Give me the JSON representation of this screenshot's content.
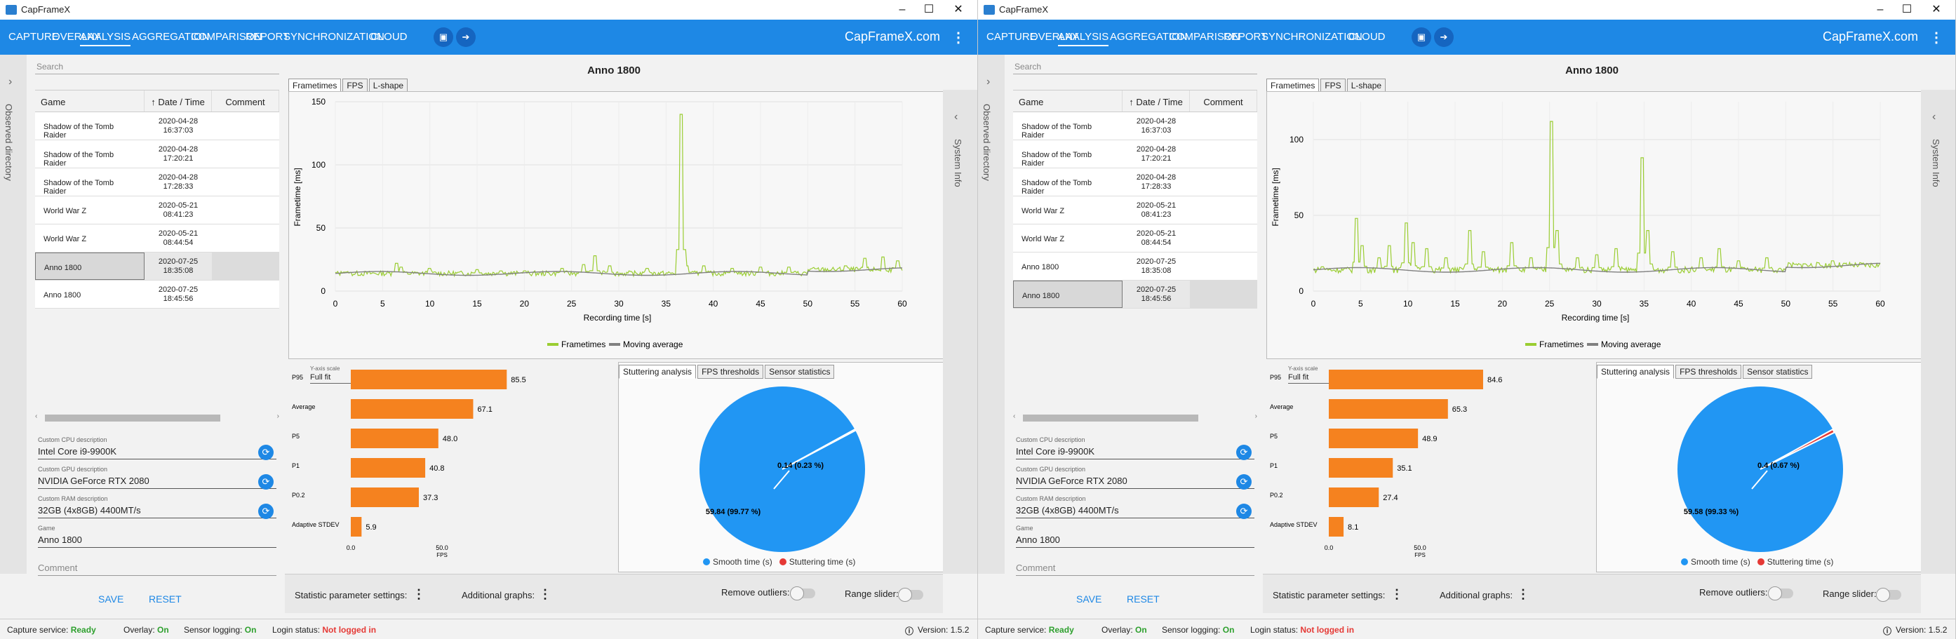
{
  "app": {
    "title": "CapFrameX"
  },
  "nav": {
    "items": [
      "CAPTURE",
      "OVERLAY",
      "ANALYSIS",
      "AGGREGATION",
      "COMPARISON",
      "REPORT",
      "SYNCHRONIZATION",
      "CLOUD"
    ],
    "active": "ANALYSIS",
    "brand": "CapFrameX.com"
  },
  "sidebar": {
    "observed_label": "Observed directory",
    "system_info_label": "System Info"
  },
  "search": {
    "placeholder": "Search"
  },
  "table": {
    "headers": [
      "Game",
      "Date / Time",
      "Comment"
    ]
  },
  "fields": {
    "cpu_label": "Custom CPU description",
    "gpu_label": "Custom GPU description",
    "ram_label": "Custom RAM description",
    "game_label": "Game",
    "comment_label": "Comment"
  },
  "buttons": {
    "save": "SAVE",
    "reset": "RESET"
  },
  "tabs": {
    "chart": [
      "Frametimes",
      "FPS",
      "L-shape"
    ],
    "analysis": [
      "Stuttering analysis",
      "FPS thresholds",
      "Sensor statistics"
    ]
  },
  "chart_labels": {
    "y_axis": "Frametime [ms]",
    "x_axis": "Recording time [s]",
    "yscale_label": "Y-axis scale",
    "yscale_value": "Full fit",
    "legend_frametimes": "Frametimes",
    "legend_moving": "Moving average",
    "fps_axis": "FPS",
    "smooth_legend": "Smooth time (s)",
    "stutter_legend": "Stuttering time (s)"
  },
  "settings": {
    "stat_params": "Statistic parameter settings:",
    "additional_graphs": "Additional graphs:",
    "remove_outliers": "Remove outliers:",
    "range_slider": "Range slider:"
  },
  "status": {
    "capture_label": "Capture service:",
    "capture_value": "Ready",
    "overlay_label": "Overlay:",
    "overlay_value": "On",
    "sensor_label": "Sensor logging:",
    "sensor_value": "On",
    "login_label": "Login status:",
    "login_value": "Not logged in",
    "version": "Version: 1.5.2"
  },
  "colors": {
    "accent": "#1e88e5",
    "frametimes": "#9acd32",
    "moving": "#808080",
    "bar": "#f5821f",
    "smooth": "#2196f3",
    "stutter": "#e53935"
  },
  "windows": [
    {
      "records": [
        {
          "game": "Shadow of the Tomb Raider",
          "date": "2020-04-28",
          "time": "16:37:03"
        },
        {
          "game": "Shadow of the Tomb Raider",
          "date": "2020-04-28",
          "time": "17:20:21"
        },
        {
          "game": "Shadow of the Tomb Raider",
          "date": "2020-04-28",
          "time": "17:28:33"
        },
        {
          "game": "World War Z",
          "date": "2020-05-21",
          "time": "08:41:23"
        },
        {
          "game": "World War Z",
          "date": "2020-05-21",
          "time": "08:44:54"
        },
        {
          "game": "Anno 1800",
          "date": "2020-07-25",
          "time": "18:35:08"
        },
        {
          "game": "Anno 1800",
          "date": "2020-07-25",
          "time": "18:45:56"
        }
      ],
      "selected": 5,
      "cpu": "Intel Core i9-9900K",
      "gpu": "NVIDIA GeForce RTX 2080",
      "ram": "32GB (4x8GB) 4400MT/s",
      "game": "Anno 1800",
      "comment": "",
      "chart_title": "Anno 1800",
      "frametime_chart": {
        "type": "line",
        "xlim": [
          0,
          60
        ],
        "ylim": [
          0,
          150
        ],
        "yticks": [
          0,
          50,
          100,
          150
        ],
        "xticks": [
          0,
          5,
          10,
          15,
          20,
          25,
          30,
          35,
          40,
          45,
          50,
          55,
          60
        ],
        "baseline": 14,
        "spikes": [
          [
            1,
            15
          ],
          [
            6.5,
            22
          ],
          [
            7,
            19
          ],
          [
            10,
            18
          ],
          [
            15,
            17
          ],
          [
            17.5,
            16
          ],
          [
            20,
            16
          ],
          [
            24,
            18
          ],
          [
            26.3,
            21
          ],
          [
            27.5,
            28
          ],
          [
            29,
            20
          ],
          [
            33,
            18
          ],
          [
            36.6,
            140
          ],
          [
            37.2,
            20
          ],
          [
            39,
            20
          ],
          [
            42,
            18
          ],
          [
            45,
            19
          ],
          [
            48,
            19
          ],
          [
            54,
            20
          ],
          [
            56,
            26
          ],
          [
            58,
            27
          ],
          [
            59.5,
            24
          ]
        ]
      },
      "bar_chart": {
        "type": "bar",
        "categories": [
          "P95",
          "Average",
          "P5",
          "P1",
          "P0.2",
          "Adaptive STDEV"
        ],
        "values": [
          85.5,
          67.1,
          48.0,
          40.8,
          37.3,
          5.9
        ],
        "ticks": [
          "0.0",
          "50.0"
        ],
        "xmax_ref": 50
      },
      "pie_chart": {
        "type": "pie",
        "slices": [
          {
            "label": "Smooth time (s)",
            "value": 59.84,
            "text": "59.84 (99.77 %)"
          },
          {
            "label": "Stuttering time (s)",
            "value": 0.14,
            "text": "0.14 (0.23 %)"
          }
        ]
      }
    },
    {
      "records": [
        {
          "game": "Shadow of the Tomb Raider",
          "date": "2020-04-28",
          "time": "16:37:03"
        },
        {
          "game": "Shadow of the Tomb Raider",
          "date": "2020-04-28",
          "time": "17:20:21"
        },
        {
          "game": "Shadow of the Tomb Raider",
          "date": "2020-04-28",
          "time": "17:28:33"
        },
        {
          "game": "World War Z",
          "date": "2020-05-21",
          "time": "08:41:23"
        },
        {
          "game": "World War Z",
          "date": "2020-05-21",
          "time": "08:44:54"
        },
        {
          "game": "Anno 1800",
          "date": "2020-07-25",
          "time": "18:35:08"
        },
        {
          "game": "Anno 1800",
          "date": "2020-07-25",
          "time": "18:45:56"
        }
      ],
      "selected": 6,
      "cpu": "Intel Core i9-9900K",
      "gpu": "NVIDIA GeForce RTX 2080",
      "ram": "32GB (4x8GB) 4400MT/s",
      "game": "Anno 1800",
      "comment": "",
      "chart_title": "Anno 1800",
      "frametime_chart": {
        "type": "line",
        "xlim": [
          0,
          60
        ],
        "ylim": [
          0,
          125
        ],
        "yticks": [
          0,
          50,
          100
        ],
        "xticks": [
          0,
          5,
          10,
          15,
          20,
          25,
          30,
          35,
          40,
          45,
          50,
          55,
          60
        ],
        "baseline": 14,
        "spikes": [
          [
            1,
            16
          ],
          [
            4.6,
            48
          ],
          [
            5.2,
            30
          ],
          [
            7,
            22
          ],
          [
            8,
            30
          ],
          [
            9.8,
            45
          ],
          [
            10.5,
            32
          ],
          [
            12,
            28
          ],
          [
            14,
            22
          ],
          [
            16.5,
            40
          ],
          [
            18,
            26
          ],
          [
            21,
            32
          ],
          [
            23,
            22
          ],
          [
            25.2,
            112
          ],
          [
            25.8,
            40
          ],
          [
            28,
            22
          ],
          [
            30,
            24
          ],
          [
            32,
            28
          ],
          [
            34.8,
            88
          ],
          [
            35.4,
            40
          ],
          [
            38,
            26
          ],
          [
            41,
            22
          ],
          [
            43,
            28
          ],
          [
            45,
            20
          ],
          [
            48,
            22
          ],
          [
            52,
            18
          ],
          [
            55,
            20
          ],
          [
            58,
            18
          ]
        ]
      },
      "bar_chart": {
        "type": "bar",
        "categories": [
          "P95",
          "Average",
          "P5",
          "P1",
          "P0.2",
          "Adaptive STDEV"
        ],
        "values": [
          84.6,
          65.3,
          48.9,
          35.1,
          27.4,
          8.1
        ],
        "ticks": [
          "0.0",
          "50.0"
        ],
        "xmax_ref": 50
      },
      "pie_chart": {
        "type": "pie",
        "slices": [
          {
            "label": "Smooth time (s)",
            "value": 59.58,
            "text": "59.58 (99.33 %)"
          },
          {
            "label": "Stuttering time (s)",
            "value": 0.4,
            "text": "0.4 (0.67 %)"
          }
        ]
      }
    }
  ]
}
